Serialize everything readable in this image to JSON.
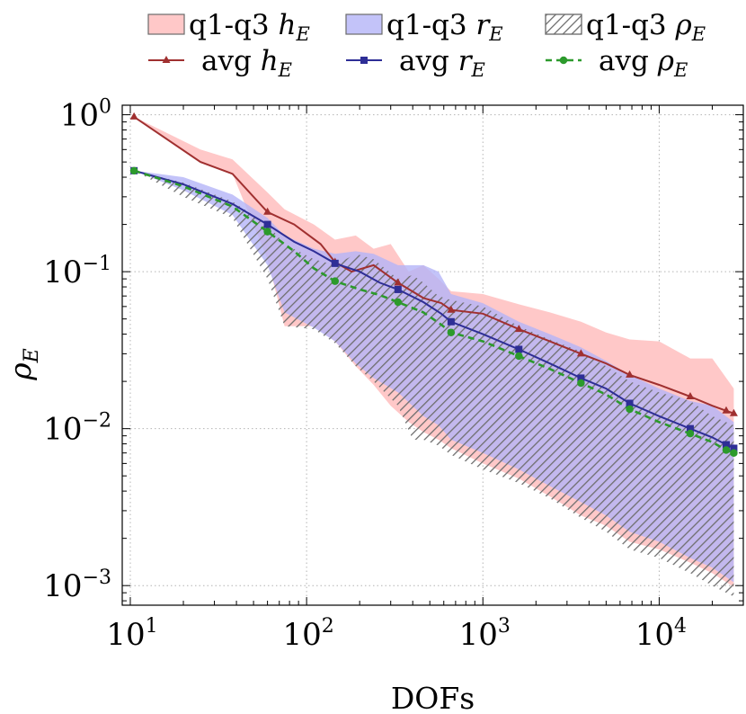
{
  "chart_data": {
    "type": "line",
    "title": "",
    "xlabel": "DOFs",
    "ylabel_base": "ρ",
    "ylabel_sub": "E",
    "xscale": "log",
    "yscale": "log",
    "xlim": [
      9,
      30000
    ],
    "ylim": [
      0.00075,
      1.15
    ],
    "grid": true,
    "xticks": [
      {
        "base": "10",
        "exp": "1",
        "value": 10
      },
      {
        "base": "10",
        "exp": "2",
        "value": 100
      },
      {
        "base": "10",
        "exp": "3",
        "value": 1000
      },
      {
        "base": "10",
        "exp": "4",
        "value": 10000
      }
    ],
    "yticks": [
      {
        "base": "10",
        "exp": "0",
        "value": 1
      },
      {
        "base": "10",
        "exp": "−1",
        "value": 0.1
      },
      {
        "base": "10",
        "exp": "−2",
        "value": 0.01
      },
      {
        "base": "10",
        "exp": "−3",
        "value": 0.001
      }
    ],
    "series": [
      {
        "name": "avg h_E",
        "legend_label": "avg ",
        "legend_symbol": "h",
        "legend_sub": "E",
        "color": "#a03030",
        "marker": "triangle",
        "dashed": false,
        "x": [
          10.5,
          25,
          38,
          60,
          85,
          120,
          145,
          180,
          240,
          330,
          460,
          580,
          660,
          1000,
          1600,
          2400,
          3600,
          5000,
          6800,
          10000,
          15000,
          20000,
          24000,
          26500
        ],
        "y": [
          0.97,
          0.5,
          0.42,
          0.24,
          0.2,
          0.15,
          0.115,
          0.1,
          0.11,
          0.085,
          0.068,
          0.063,
          0.057,
          0.054,
          0.043,
          0.036,
          0.03,
          0.026,
          0.022,
          0.019,
          0.016,
          0.014,
          0.013,
          0.0125
        ],
        "marker_x": [
          10.5,
          60,
          145,
          330,
          660,
          1600,
          3600,
          6800,
          15000,
          24000,
          26500
        ],
        "marker_y": [
          0.97,
          0.24,
          0.115,
          0.085,
          0.057,
          0.043,
          0.03,
          0.022,
          0.016,
          0.013,
          0.0125
        ]
      },
      {
        "name": "avg r_E",
        "legend_label": "avg ",
        "legend_symbol": "r",
        "legend_sub": "E",
        "color": "#2e2e96",
        "marker": "square",
        "dashed": false,
        "x": [
          10.5,
          20,
          38,
          60,
          85,
          110,
          145,
          200,
          260,
          330,
          460,
          580,
          660,
          1000,
          1600,
          2400,
          3600,
          5000,
          6800,
          10000,
          15000,
          20000,
          24000,
          26500
        ],
        "y": [
          0.44,
          0.36,
          0.27,
          0.2,
          0.155,
          0.135,
          0.113,
          0.1,
          0.085,
          0.077,
          0.064,
          0.054,
          0.048,
          0.04,
          0.032,
          0.026,
          0.021,
          0.018,
          0.0145,
          0.012,
          0.01,
          0.0088,
          0.0079,
          0.0075
        ],
        "marker_x": [
          10.5,
          60,
          145,
          330,
          660,
          1600,
          3600,
          6800,
          15000,
          24000,
          26500
        ],
        "marker_y": [
          0.44,
          0.2,
          0.113,
          0.077,
          0.048,
          0.032,
          0.021,
          0.0145,
          0.01,
          0.0079,
          0.0075
        ]
      },
      {
        "name": "avg rho_E",
        "legend_label": "avg ",
        "legend_symbol": "ρ",
        "legend_sub": "E",
        "color": "#2c9a2c",
        "marker": "circle",
        "dashed": true,
        "x": [
          10.5,
          20,
          38,
          60,
          85,
          110,
          145,
          200,
          260,
          330,
          460,
          580,
          660,
          1000,
          1600,
          2400,
          3600,
          5000,
          6800,
          10000,
          15000,
          20000,
          24000,
          26500
        ],
        "y": [
          0.44,
          0.35,
          0.26,
          0.18,
          0.135,
          0.105,
          0.087,
          0.077,
          0.071,
          0.064,
          0.055,
          0.046,
          0.041,
          0.036,
          0.029,
          0.024,
          0.0195,
          0.0165,
          0.0133,
          0.011,
          0.0093,
          0.0082,
          0.0073,
          0.007
        ],
        "marker_x": [
          10.5,
          60,
          145,
          330,
          660,
          1600,
          3600,
          6800,
          15000,
          24000,
          26500
        ],
        "marker_y": [
          0.44,
          0.18,
          0.087,
          0.064,
          0.041,
          0.029,
          0.0195,
          0.0133,
          0.0093,
          0.0073,
          0.007
        ]
      }
    ],
    "bands": [
      {
        "name": "q1-q3 h_E",
        "legend_label": "q1-q3 ",
        "legend_symbol": "h",
        "legend_sub": "E",
        "fill": "#ffc8c8",
        "opacity": 1,
        "pattern": "none",
        "x": [
          10.5,
          25,
          38,
          60,
          75,
          110,
          145,
          190,
          240,
          300,
          380,
          460,
          560,
          660,
          1000,
          1600,
          2400,
          3600,
          5000,
          6800,
          10000,
          15000,
          20000,
          26500
        ],
        "upper": [
          0.97,
          0.6,
          0.52,
          0.32,
          0.25,
          0.2,
          0.16,
          0.17,
          0.14,
          0.15,
          0.1,
          0.11,
          0.09,
          0.075,
          0.072,
          0.062,
          0.055,
          0.048,
          0.041,
          0.037,
          0.036,
          0.028,
          0.028,
          0.018
        ],
        "lower": [
          0.97,
          0.5,
          0.42,
          0.12,
          0.045,
          0.045,
          0.036,
          0.025,
          0.019,
          0.014,
          0.011,
          0.0095,
          0.0085,
          0.0075,
          0.006,
          0.0048,
          0.0037,
          0.0028,
          0.0024,
          0.0019,
          0.0017,
          0.0014,
          0.0012,
          0.00098
        ]
      },
      {
        "name": "q1-q3 r_E",
        "legend_label": "q1-q3 ",
        "legend_symbol": "r",
        "legend_sub": "E",
        "fill": "#b4b4f8",
        "opacity": 0.8,
        "pattern": "none",
        "x": [
          10.5,
          20,
          38,
          60,
          75,
          110,
          145,
          190,
          240,
          330,
          460,
          560,
          660,
          1000,
          1600,
          2400,
          3600,
          5000,
          6800,
          10000,
          15000,
          20000,
          26500
        ],
        "upper": [
          0.44,
          0.4,
          0.31,
          0.22,
          0.17,
          0.14,
          0.13,
          0.135,
          0.13,
          0.11,
          0.11,
          0.1,
          0.072,
          0.063,
          0.048,
          0.04,
          0.033,
          0.027,
          0.022,
          0.018,
          0.015,
          0.014,
          0.011
        ],
        "lower": [
          0.44,
          0.33,
          0.23,
          0.11,
          0.055,
          0.044,
          0.036,
          0.026,
          0.021,
          0.017,
          0.012,
          0.0105,
          0.0085,
          0.007,
          0.0055,
          0.0043,
          0.0034,
          0.0028,
          0.0022,
          0.0019,
          0.0015,
          0.0013,
          0.00105
        ]
      },
      {
        "name": "q1-q3 rho_E",
        "legend_label": "q1-q3 ",
        "legend_symbol": "ρ",
        "legend_sub": "E",
        "fill": "#6e6e6e",
        "opacity": 1,
        "pattern": "hatch",
        "x": [
          10.5,
          20,
          38,
          60,
          75,
          110,
          145,
          190,
          240,
          330,
          400,
          460,
          560,
          660,
          1000,
          1600,
          2400,
          3600,
          5000,
          6800,
          10000,
          15000,
          20000,
          26500
        ],
        "upper": [
          0.44,
          0.37,
          0.28,
          0.2,
          0.15,
          0.12,
          0.11,
          0.13,
          0.12,
          0.09,
          0.095,
          0.085,
          0.07,
          0.066,
          0.06,
          0.045,
          0.037,
          0.031,
          0.025,
          0.02,
          0.017,
          0.015,
          0.012,
          0.0105
        ],
        "lower": [
          0.44,
          0.3,
          0.22,
          0.09,
          0.045,
          0.043,
          0.035,
          0.025,
          0.02,
          0.014,
          0.0085,
          0.0085,
          0.0078,
          0.0068,
          0.0055,
          0.0045,
          0.0036,
          0.0027,
          0.0022,
          0.0017,
          0.0015,
          0.0012,
          0.001,
          0.00085
        ]
      }
    ]
  }
}
